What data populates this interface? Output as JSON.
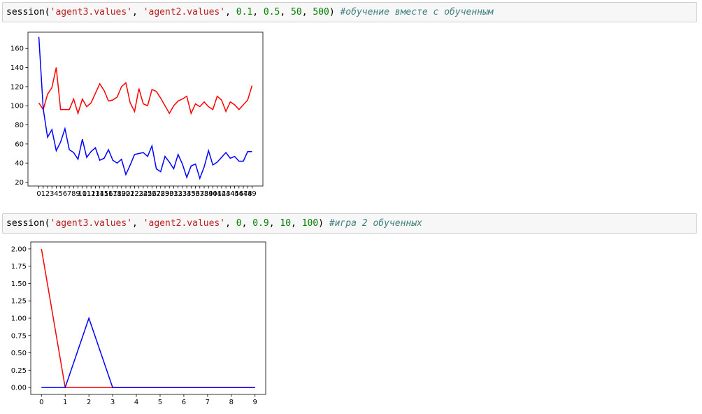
{
  "cells": [
    {
      "code": {
        "func": "session(",
        "arg1": "'agent3.values'",
        "sep1": ", ",
        "arg2": "'agent2.values'",
        "sep2": ", ",
        "n1": "0.1",
        "sep3": ", ",
        "n2": "0.5",
        "sep4": ", ",
        "n3": "50",
        "sep5": ", ",
        "n4": "500",
        "close": ") ",
        "comment": "#обучение вместе с обученным"
      }
    },
    {
      "code": {
        "func": "session(",
        "arg1": "'agent3.values'",
        "sep1": ", ",
        "arg2": "'agent2.values'",
        "sep2": ", ",
        "n1": "0",
        "sep3": ", ",
        "n2": "0.9",
        "sep4": ", ",
        "n3": "10",
        "sep5": ", ",
        "n4": "100",
        "close": ") ",
        "comment": "#игра 2 обученных"
      }
    }
  ],
  "chart_data": [
    {
      "type": "line",
      "x": [
        0,
        1,
        2,
        3,
        4,
        5,
        6,
        7,
        8,
        9,
        10,
        11,
        12,
        13,
        14,
        15,
        16,
        17,
        18,
        19,
        20,
        21,
        22,
        23,
        24,
        25,
        26,
        27,
        28,
        29,
        30,
        31,
        32,
        33,
        34,
        35,
        36,
        37,
        38,
        39,
        40,
        41,
        42,
        43,
        44,
        45,
        46,
        47,
        48,
        49
      ],
      "xticks": [
        "0",
        "1",
        "2",
        "3",
        "4",
        "5",
        "6",
        "7",
        "8",
        "9",
        "10",
        "11",
        "12",
        "13",
        "14",
        "15",
        "16",
        "17",
        "18",
        "19",
        "20",
        "21",
        "22",
        "23",
        "24",
        "25",
        "26",
        "27",
        "28",
        "29",
        "30",
        "31",
        "32",
        "33",
        "34",
        "35",
        "36",
        "37",
        "38",
        "39",
        "40",
        "41",
        "42",
        "43",
        "44",
        "45",
        "46",
        "47",
        "48",
        "49"
      ],
      "yticks": [
        20,
        40,
        60,
        80,
        100,
        120,
        140,
        160
      ],
      "ytick_labels": [
        "20",
        "40",
        "60",
        "80",
        "100",
        "120",
        "140",
        "160"
      ],
      "xlim": [
        -2.5,
        51.5
      ],
      "ylim": [
        16,
        177
      ],
      "series": [
        {
          "color": "#ff0000",
          "values": [
            103,
            96,
            112,
            119,
            140,
            96,
            96,
            96,
            107,
            92,
            107,
            99,
            103,
            113,
            123,
            116,
            105,
            106,
            109,
            120,
            124,
            103,
            94,
            118,
            102,
            100,
            117,
            115,
            108,
            100,
            92,
            100,
            105,
            107,
            110,
            92,
            102,
            99,
            104,
            99,
            96,
            110,
            106,
            94,
            104,
            101,
            96,
            101,
            106,
            121
          ]
        },
        {
          "color": "#0000ff",
          "values": [
            172,
            97,
            67,
            75,
            53,
            62,
            76,
            54,
            51,
            44,
            65,
            46,
            52,
            56,
            43,
            45,
            54,
            43,
            40,
            44,
            28,
            38,
            49,
            50,
            51,
            47,
            58,
            34,
            31,
            47,
            41,
            34,
            49,
            39,
            25,
            37,
            39,
            24,
            36,
            53,
            38,
            41,
            46,
            51,
            45,
            47,
            42,
            42,
            52,
            52
          ]
        }
      ]
    },
    {
      "type": "line",
      "x": [
        0,
        1,
        2,
        3,
        4,
        5,
        6,
        7,
        8,
        9
      ],
      "xticks": [
        "0",
        "1",
        "2",
        "3",
        "4",
        "5",
        "6",
        "7",
        "8",
        "9"
      ],
      "yticks": [
        0,
        0.25,
        0.5,
        0.75,
        1.0,
        1.25,
        1.5,
        1.75,
        2.0
      ],
      "ytick_labels": [
        "0.00",
        "0.25",
        "0.50",
        "0.75",
        "1.00",
        "1.25",
        "1.50",
        "1.75",
        "2.00"
      ],
      "xlim": [
        -0.45,
        9.45
      ],
      "ylim": [
        -0.1,
        2.1
      ],
      "series": [
        {
          "color": "#ff0000",
          "values": [
            2,
            0,
            0,
            0,
            0,
            0,
            0,
            0,
            0,
            0
          ]
        },
        {
          "color": "#0000ff",
          "values": [
            0,
            0,
            1,
            0,
            0,
            0,
            0,
            0,
            0,
            0
          ]
        }
      ]
    }
  ]
}
